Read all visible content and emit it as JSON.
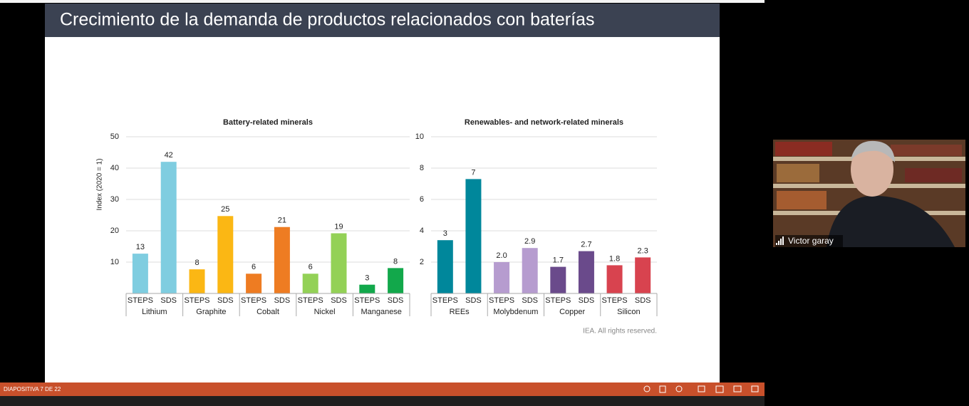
{
  "slide": {
    "title": "Crecimiento de la demanda de productos relacionados con baterías",
    "source": "IEA. All rights reserved."
  },
  "chart_data": [
    {
      "type": "bar",
      "title": "Battery-related minerals",
      "y_label": "Index (2020 = 1)",
      "ylim": [
        0,
        50
      ],
      "yticks": [
        10,
        20,
        30,
        40,
        50
      ],
      "grid": true,
      "groups": [
        {
          "name": "Lithium",
          "categories": [
            "STEPS",
            "SDS"
          ],
          "values": [
            12.7,
            42
          ],
          "value_labels": [
            "13",
            "42"
          ],
          "color": "#7fcde0"
        },
        {
          "name": "Graphite",
          "categories": [
            "STEPS",
            "SDS"
          ],
          "values": [
            7.7,
            24.7
          ],
          "value_labels": [
            "8",
            "25"
          ],
          "color": "#fbb714"
        },
        {
          "name": "Cobalt",
          "categories": [
            "STEPS",
            "SDS"
          ],
          "values": [
            6.3,
            21.2
          ],
          "value_labels": [
            "6",
            "21"
          ],
          "color": "#ee7c22"
        },
        {
          "name": "Nickel",
          "categories": [
            "STEPS",
            "SDS"
          ],
          "values": [
            6.3,
            19.2
          ],
          "value_labels": [
            "6",
            "19"
          ],
          "color": "#93d156"
        },
        {
          "name": "Manganese",
          "categories": [
            "STEPS",
            "SDS"
          ],
          "values": [
            2.8,
            8.1
          ],
          "value_labels": [
            "3",
            "8"
          ],
          "color": "#12a84b"
        }
      ]
    },
    {
      "type": "bar",
      "title": "Renewables- and network-related minerals",
      "ylim": [
        0,
        10
      ],
      "yticks": [
        2,
        4,
        6,
        8,
        10
      ],
      "grid": true,
      "groups": [
        {
          "name": "REEs",
          "categories": [
            "STEPS",
            "SDS"
          ],
          "values": [
            3.4,
            7.3
          ],
          "value_labels": [
            "3",
            "7"
          ],
          "color": "#00879b"
        },
        {
          "name": "Molybdenum",
          "categories": [
            "STEPS",
            "SDS"
          ],
          "values": [
            2.0,
            2.9
          ],
          "value_labels": [
            "2.0",
            "2.9"
          ],
          "color": "#b69ccf"
        },
        {
          "name": "Copper",
          "categories": [
            "STEPS",
            "SDS"
          ],
          "values": [
            1.7,
            2.7
          ],
          "value_labels": [
            "1.7",
            "2.7"
          ],
          "color": "#6a4a8b"
        },
        {
          "name": "Silicon",
          "categories": [
            "STEPS",
            "SDS"
          ],
          "values": [
            1.8,
            2.3
          ],
          "value_labels": [
            "1.8",
            "2.3"
          ],
          "color": "#d8434f"
        }
      ]
    }
  ],
  "status_bar": {
    "slide_counter": "DIAPOSITIVA 7 DE 22"
  },
  "participant": {
    "name": "Victor garay"
  }
}
